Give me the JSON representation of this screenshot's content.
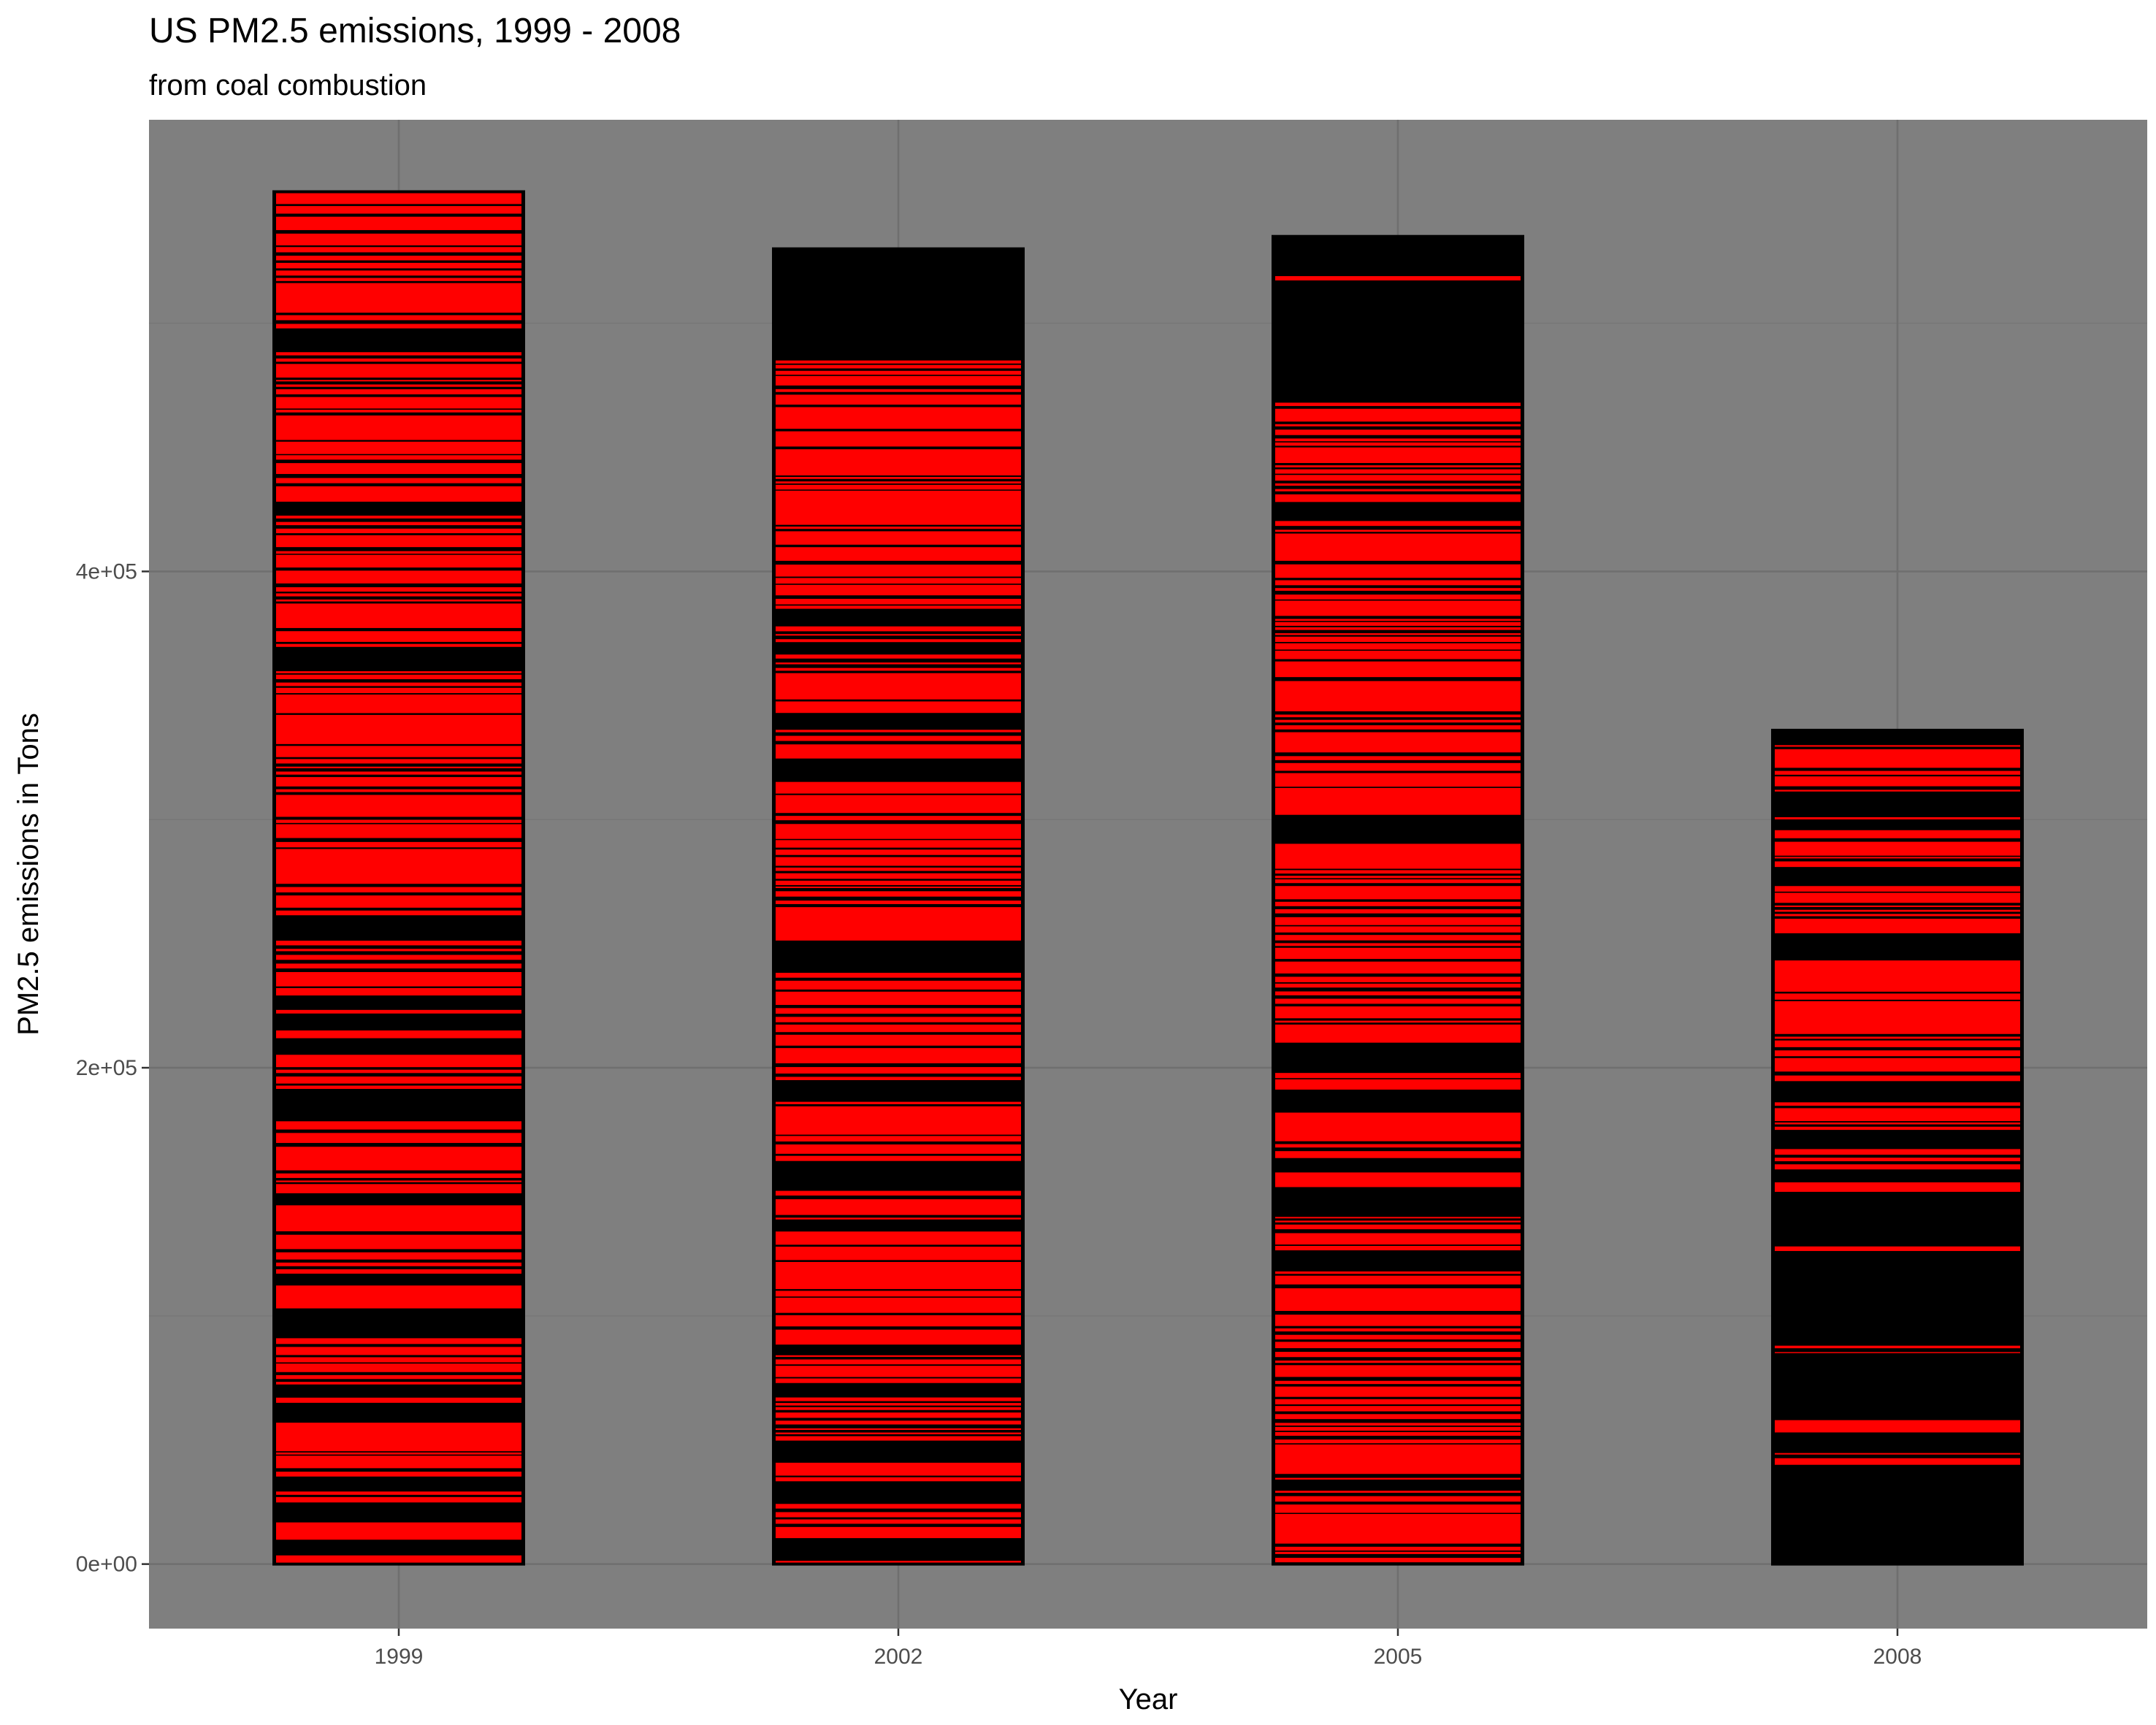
{
  "chart_data": {
    "type": "bar",
    "title": "US PM2.5 emissions, 1999 - 2008",
    "subtitle": "from coal combustion",
    "xlabel": "Year",
    "ylabel": "PM2.5 emissions in Tons",
    "categories": [
      "1999",
      "2002",
      "2005",
      "2008"
    ],
    "values": [
      553000,
      530000,
      535000,
      336000
    ],
    "ylim": [
      -26000,
      582000
    ],
    "y_ticks": [
      {
        "value": 0,
        "label": "0e+00"
      },
      {
        "value": 200000,
        "label": "2e+05"
      },
      {
        "value": 400000,
        "label": "4e+05"
      }
    ],
    "grid": true,
    "legend": "none",
    "stacked_segments": true,
    "red_band_regions": [
      [
        [
          0,
          553000
        ]
      ],
      [
        [
          0,
          485000
        ]
      ],
      [
        [
          0,
          468000
        ],
        [
          515000,
          519000
        ]
      ],
      [
        [
          40000,
          58000
        ],
        [
          85000,
          88000
        ],
        [
          125000,
          128000
        ],
        [
          150000,
          330000
        ]
      ]
    ],
    "colors": {
      "panel_background": "#7f7f7f",
      "grid_major": "#6f6f6f",
      "grid_minor": "#777777",
      "bar_fill": "#ff0000",
      "bar_outline": "#000000"
    }
  }
}
